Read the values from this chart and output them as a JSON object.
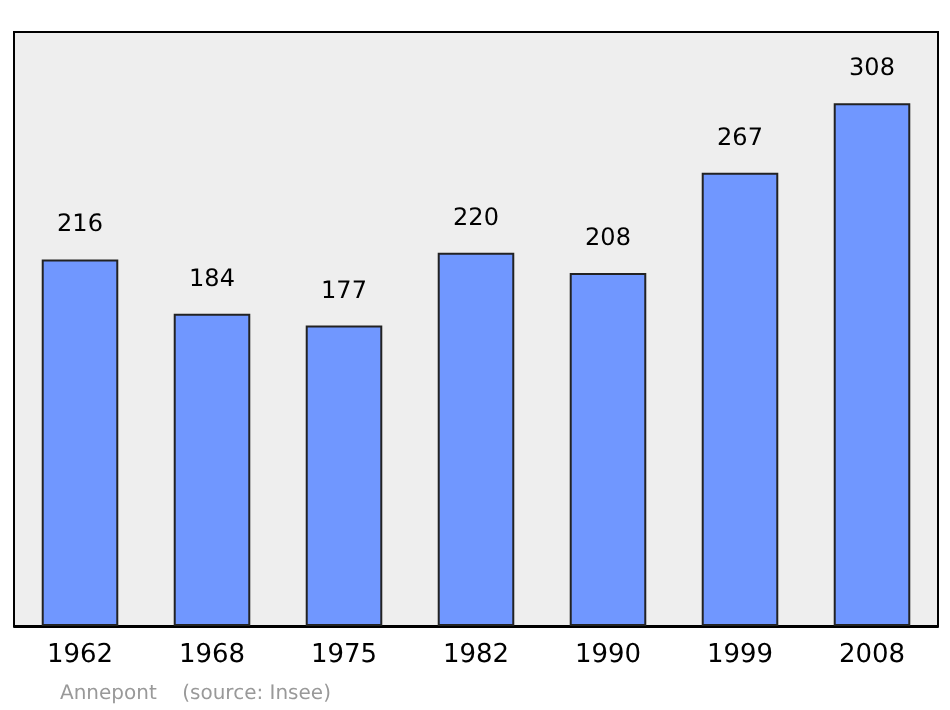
{
  "chart_data": {
    "type": "bar",
    "categories": [
      "1962",
      "1968",
      "1975",
      "1982",
      "1990",
      "1999",
      "2008"
    ],
    "values": [
      216,
      184,
      177,
      220,
      208,
      267,
      308
    ],
    "color": "#7097ff",
    "data_labels": true,
    "annotations": [
      "Annepont    (source: Insee)"
    ]
  }
}
